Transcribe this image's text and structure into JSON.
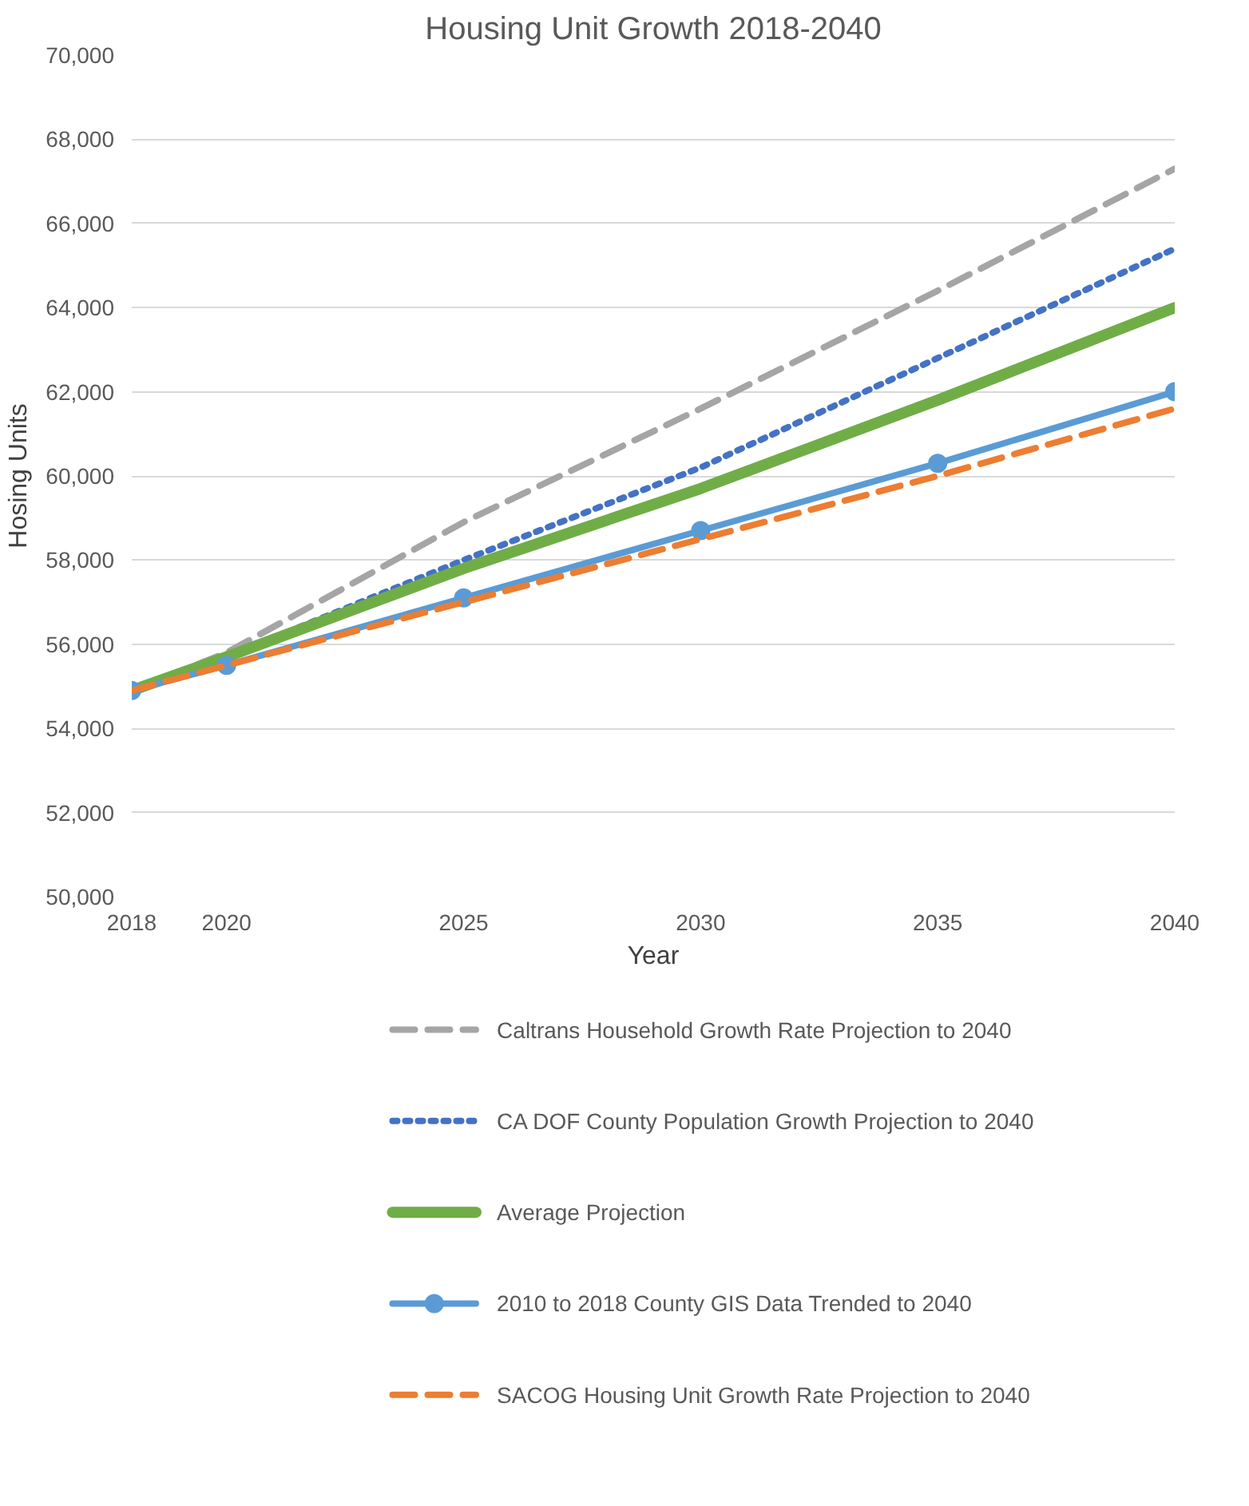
{
  "chart_data": {
    "type": "line",
    "title": "Housing Unit Growth 2018-2040",
    "xlabel": "Year",
    "ylabel": "Hosing Units",
    "x": [
      2018,
      2020,
      2025,
      2030,
      2035,
      2040
    ],
    "xlim": [
      2018,
      2040
    ],
    "xticks": [
      2018,
      2020,
      2025,
      2030,
      2035,
      2040
    ],
    "ylim": [
      50000,
      70000
    ],
    "yticks": [
      {
        "value": 50000,
        "label": "50,000"
      },
      {
        "value": 52000,
        "label": "52,000"
      },
      {
        "value": 54000,
        "label": "54,000"
      },
      {
        "value": 56000,
        "label": "56,000"
      },
      {
        "value": 58000,
        "label": "58,000"
      },
      {
        "value": 60000,
        "label": "60,000"
      },
      {
        "value": 62000,
        "label": "62,000"
      },
      {
        "value": 64000,
        "label": "64,000"
      },
      {
        "value": 66000,
        "label": "66,000"
      },
      {
        "value": 68000,
        "label": "68,000"
      },
      {
        "value": 70000,
        "label": "70,000"
      }
    ],
    "grid": "y",
    "legend": "bottom",
    "series": [
      {
        "name": "Caltrans Household Growth Rate Projection to 2040",
        "color": "#a5a5a5",
        "line_style": "dashed",
        "marker": "none",
        "values": [
          54900,
          55800,
          58900,
          61600,
          64400,
          67300
        ]
      },
      {
        "name": "CA DOF County Population Growth Projection to 2040",
        "color": "#4472c4",
        "line_style": "dotted",
        "marker": "none",
        "values": [
          54900,
          55700,
          58000,
          60200,
          62800,
          65400
        ]
      },
      {
        "name": "Average Projection",
        "color": "#70ad47",
        "line_style": "solid",
        "marker": "none",
        "values": [
          54900,
          55700,
          57800,
          59700,
          61800,
          64000
        ]
      },
      {
        "name": "2010 to 2018 County GIS Data Trended to 2040",
        "color": "#5b9bd5",
        "line_style": "solid",
        "marker": "circle",
        "values": [
          54900,
          55500,
          57100,
          58700,
          60300,
          62000
        ]
      },
      {
        "name": "SACOG Housing Unit Growth Rate Projection to 2040",
        "color": "#ed7d31",
        "line_style": "dashed",
        "marker": "none",
        "values": [
          54900,
          55500,
          57000,
          58500,
          60000,
          61600
        ]
      }
    ]
  }
}
